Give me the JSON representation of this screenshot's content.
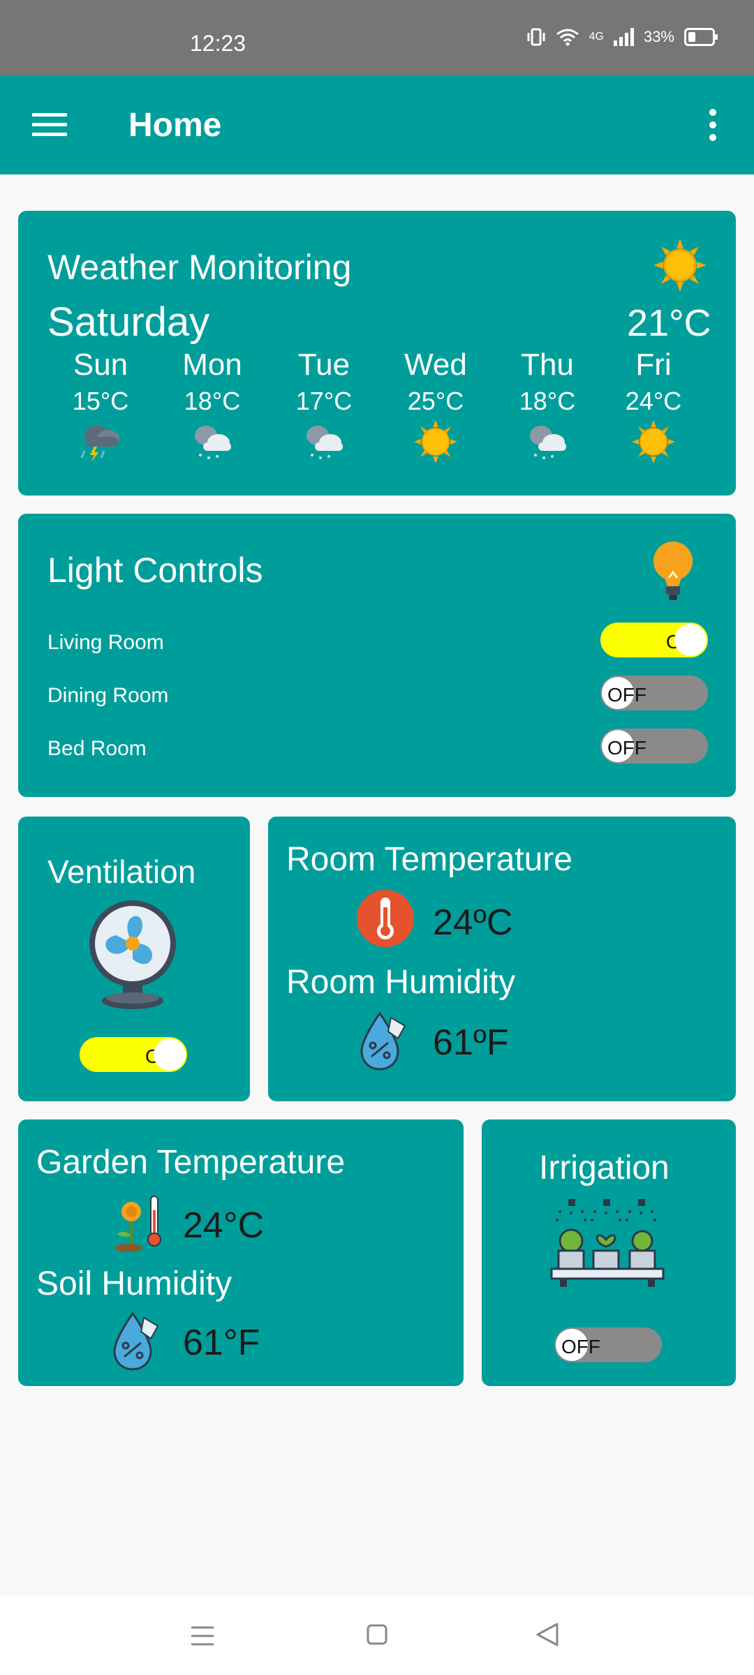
{
  "status": {
    "time": "12:23",
    "network": "4G",
    "battery": "33%"
  },
  "app_bar": {
    "title": "Home"
  },
  "weather": {
    "title": "Weather Monitoring",
    "today": "Saturday",
    "current_temp": "21°C",
    "forecast": [
      {
        "day": "Sun",
        "temp": "15°C",
        "icon": "thunderstorm-icon"
      },
      {
        "day": "Mon",
        "temp": "18°C",
        "icon": "cloudy-rain-icon"
      },
      {
        "day": "Tue",
        "temp": "17°C",
        "icon": "cloudy-rain-icon"
      },
      {
        "day": "Wed",
        "temp": "25°C",
        "icon": "sun-icon"
      },
      {
        "day": "Thu",
        "temp": "18°C",
        "icon": "cloudy-rain-icon"
      },
      {
        "day": "Fri",
        "temp": "24°C",
        "icon": "sun-icon"
      }
    ]
  },
  "lights": {
    "title": "Light Controls",
    "rooms": [
      {
        "name": "Living Room",
        "state": "ON"
      },
      {
        "name": "Dining Room",
        "state": "OFF"
      },
      {
        "name": "Bed Room",
        "state": "OFF"
      }
    ]
  },
  "ventilation": {
    "title": "Ventilation",
    "state": "ON"
  },
  "room": {
    "temp_title": "Room Temperature",
    "temp_value": "24ºC",
    "humidity_title": "Room Humidity",
    "humidity_value": "61ºF"
  },
  "garden": {
    "temp_title": "Garden Temperature",
    "temp_value": "24°C",
    "humidity_title": "Soil Humidity",
    "humidity_value": "61°F"
  },
  "irrigation": {
    "title": "Irrigation",
    "state": "OFF"
  },
  "colors": {
    "primary": "#009e9b",
    "toggle_on": "#fbff00",
    "toggle_off": "#8a8a8a"
  }
}
